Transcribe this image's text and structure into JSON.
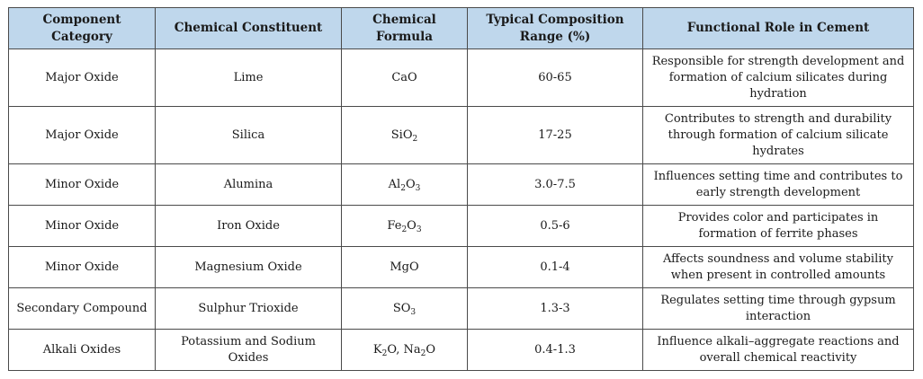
{
  "table": {
    "headers": [
      "Component Category",
      "Chemical Constituent",
      "Chemical Formula",
      "Typical Composition Range (%)",
      "Functional Role in Cement"
    ],
    "rows": [
      {
        "category": "Major Oxide",
        "constituent": "Lime",
        "formula_parts": [
          {
            "t": "CaO"
          }
        ],
        "range": "60-65",
        "role": "Responsible for strength development and formation of calcium silicates during hydration"
      },
      {
        "category": "Major Oxide",
        "constituent": "Silica",
        "formula_parts": [
          {
            "t": "SiO"
          },
          {
            "sub": "2"
          }
        ],
        "range": "17-25",
        "role": "Contributes to strength and durability through formation of calcium silicate hydrates"
      },
      {
        "category": "Minor Oxide",
        "constituent": "Alumina",
        "formula_parts": [
          {
            "t": "Al"
          },
          {
            "sub": "2"
          },
          {
            "t": "O"
          },
          {
            "sub": "3"
          }
        ],
        "range": "3.0-7.5",
        "role": "Influences setting time and contributes to early strength development"
      },
      {
        "category": "Minor Oxide",
        "constituent": "Iron Oxide",
        "formula_parts": [
          {
            "t": "Fe"
          },
          {
            "sub": "2"
          },
          {
            "t": "O"
          },
          {
            "sub": "3"
          }
        ],
        "range": "0.5-6",
        "role": "Provides color and participates in formation of ferrite phases"
      },
      {
        "category": "Minor Oxide",
        "constituent": "Magnesium Oxide",
        "formula_parts": [
          {
            "t": "MgO"
          }
        ],
        "range": "0.1-4",
        "role": "Affects soundness and volume stability when present in controlled amounts"
      },
      {
        "category": "Secondary Compound",
        "constituent": "Sulphur Trioxide",
        "formula_parts": [
          {
            "t": "SO"
          },
          {
            "sub": "3"
          }
        ],
        "range": "1.3-3",
        "role": "Regulates setting time through gypsum interaction"
      },
      {
        "category": "Alkali Oxides",
        "constituent": "Potassium and Sodium Oxides",
        "formula_parts": [
          {
            "t": "K"
          },
          {
            "sub": "2"
          },
          {
            "t": "O, Na"
          },
          {
            "sub": "2"
          },
          {
            "t": "O"
          }
        ],
        "range": "0.4-1.3",
        "role": "Influence alkali–aggregate reactions and overall chemical reactivity"
      }
    ]
  },
  "colors": {
    "header_bg": "#bfd7ec",
    "border": "#4a4a4a"
  }
}
